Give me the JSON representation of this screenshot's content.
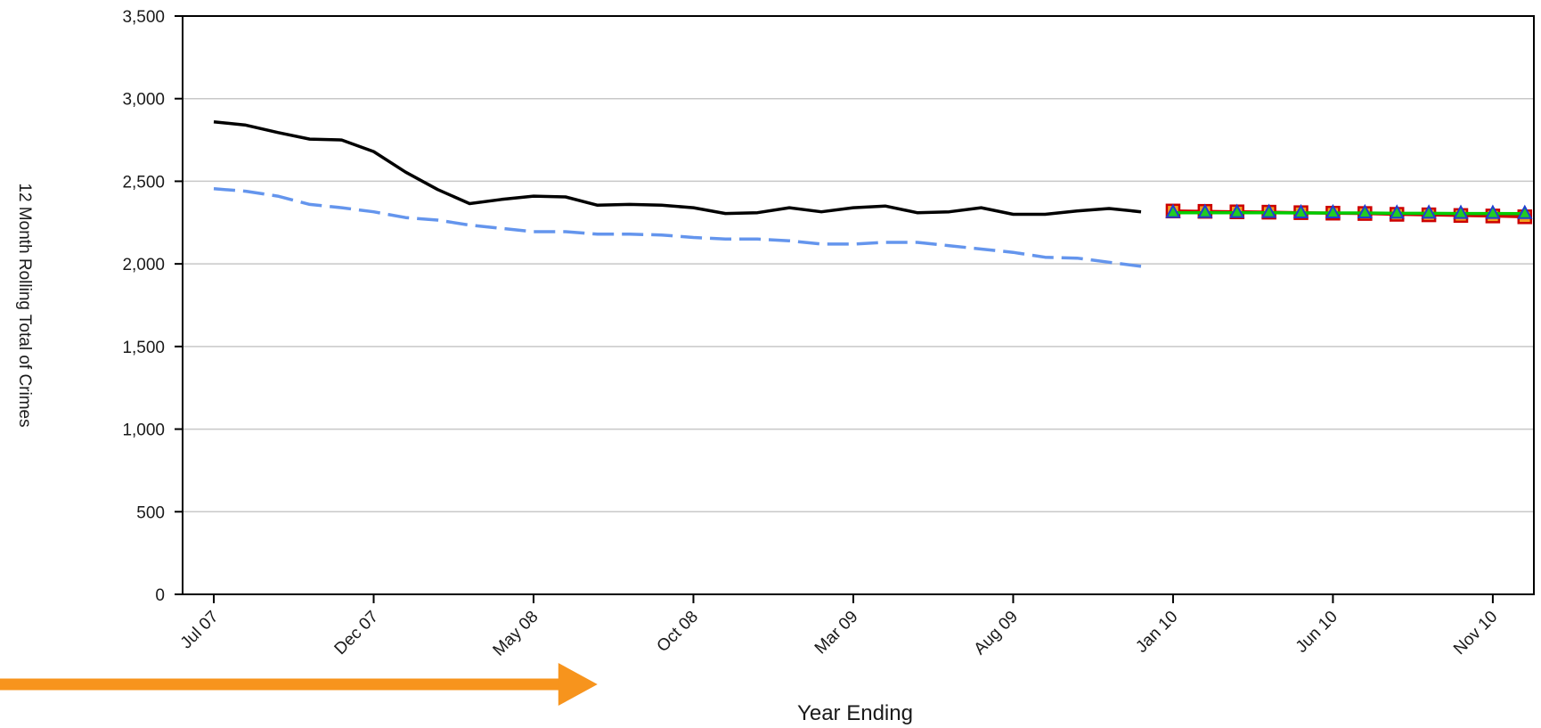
{
  "chart_data": {
    "type": "line",
    "xlabel": "Year Ending",
    "ylabel": "12 Month Rolling Total of Crimes",
    "ylim": [
      0,
      3500
    ],
    "yticks": [
      0,
      500,
      1000,
      1500,
      2000,
      2500,
      3000,
      3500
    ],
    "ytick_labels": [
      "0",
      "500",
      "1,000",
      "1,500",
      "2,000",
      "2,500",
      "3,000",
      "3,500"
    ],
    "xtick_labels": [
      "Jul 07",
      "Dec 07",
      "May 08",
      "Oct 08",
      "Mar 09",
      "Aug 09",
      "Jan 10",
      "Jun 10",
      "Nov 10"
    ],
    "grid": true,
    "x": [
      "Jul 07",
      "Aug 07",
      "Sep 07",
      "Oct 07",
      "Nov 07",
      "Dec 07",
      "Jan 08",
      "Feb 08",
      "Mar 08",
      "Apr 08",
      "May 08",
      "Jun 08",
      "Jul 08",
      "Aug 08",
      "Sep 08",
      "Oct 08",
      "Nov 08",
      "Dec 08",
      "Jan 09",
      "Feb 09",
      "Mar 09",
      "Apr 09",
      "May 09",
      "Jun 09",
      "Jul 09",
      "Aug 09",
      "Sep 09",
      "Oct 09",
      "Nov 09",
      "Dec 09",
      "Jan 10",
      "Feb 10",
      "Mar 10",
      "Apr 10",
      "May 10",
      "Jun 10",
      "Jul 10",
      "Aug 10",
      "Sep 10",
      "Oct 10",
      "Nov 10",
      "Dec 10"
    ],
    "series": [
      {
        "style": "solid-black",
        "color": "#000000",
        "x": [
          "Jul 07",
          "Aug 07",
          "Sep 07",
          "Oct 07",
          "Nov 07",
          "Dec 07",
          "Jan 08",
          "Feb 08",
          "Mar 08",
          "Apr 08",
          "May 08",
          "Jun 08",
          "Jul 08",
          "Aug 08",
          "Sep 08",
          "Oct 08",
          "Nov 08",
          "Dec 08",
          "Jan 09",
          "Feb 09",
          "Mar 09",
          "Apr 09",
          "May 09",
          "Jun 09",
          "Jul 09",
          "Aug 09",
          "Sep 09",
          "Oct 09",
          "Nov 09",
          "Dec 09"
        ],
        "values": [
          2860,
          2840,
          2795,
          2755,
          2750,
          2680,
          2555,
          2450,
          2365,
          2390,
          2410,
          2405,
          2355,
          2360,
          2355,
          2340,
          2305,
          2310,
          2340,
          2315,
          2340,
          2350,
          2310,
          2315,
          2340,
          2300,
          2300,
          2320,
          2335,
          2315
        ]
      },
      {
        "style": "dashed-blue",
        "color": "#6495ed",
        "x": [
          "Jul 07",
          "Aug 07",
          "Sep 07",
          "Oct 07",
          "Nov 07",
          "Dec 07",
          "Jan 08",
          "Feb 08",
          "Mar 08",
          "Apr 08",
          "May 08",
          "Jun 08",
          "Jul 08",
          "Aug 08",
          "Sep 08",
          "Oct 08",
          "Nov 08",
          "Dec 08",
          "Jan 09",
          "Feb 09",
          "Mar 09",
          "Apr 09",
          "May 09",
          "Jun 09",
          "Jul 09",
          "Aug 09",
          "Sep 09",
          "Oct 09",
          "Nov 09",
          "Dec 09"
        ],
        "values": [
          2455,
          2440,
          2410,
          2360,
          2340,
          2315,
          2280,
          2265,
          2235,
          2215,
          2195,
          2195,
          2180,
          2180,
          2175,
          2160,
          2150,
          2150,
          2140,
          2120,
          2120,
          2130,
          2130,
          2110,
          2090,
          2070,
          2040,
          2035,
          2010,
          1985
        ]
      },
      {
        "style": "red-squares",
        "color": "#cc0000",
        "marker": "square",
        "x": [
          "Jan 10",
          "Feb 10",
          "Mar 10",
          "Apr 10",
          "May 10",
          "Jun 10",
          "Jul 10",
          "Aug 10",
          "Sep 10",
          "Oct 10",
          "Nov 10",
          "Dec 10"
        ],
        "values": [
          2320,
          2318,
          2315,
          2313,
          2310,
          2307,
          2305,
          2300,
          2297,
          2293,
          2290,
          2285
        ]
      },
      {
        "style": "green-line-blue-triangles",
        "color": "#00cc00",
        "marker_color": "#1f3fd0",
        "marker": "triangle",
        "x": [
          "Jan 10",
          "Feb 10",
          "Mar 10",
          "Apr 10",
          "May 10",
          "Jun 10",
          "Jul 10",
          "Aug 10",
          "Sep 10",
          "Oct 10",
          "Nov 10",
          "Dec 10"
        ],
        "values": [
          2310,
          2310,
          2310,
          2310,
          2308,
          2308,
          2308,
          2306,
          2306,
          2305,
          2305,
          2304
        ]
      }
    ]
  },
  "annotation": {
    "shape": "double-headed-arrow",
    "color": "#f7941d",
    "from_x": "Jun 06",
    "to_x": "Jul 08"
  }
}
